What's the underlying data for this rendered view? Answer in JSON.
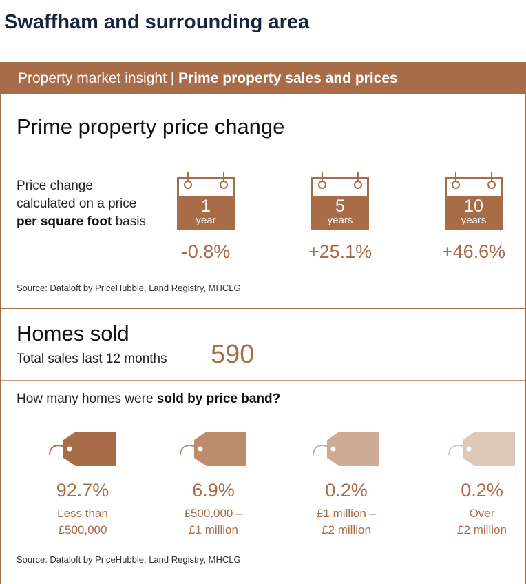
{
  "page_title": "Swaffham and surrounding area",
  "banner": {
    "prefix": "Property market insight | ",
    "bold": "Prime property sales and prices"
  },
  "price_change": {
    "title": "Prime property price change",
    "desc": {
      "t1": "Price change calculated on a price ",
      "b1": "per square foot",
      "t2": " basis"
    },
    "periods": [
      {
        "num": "1",
        "unit": "year",
        "value": "-0.8%"
      },
      {
        "num": "5",
        "unit": "years",
        "value": "+25.1%"
      },
      {
        "num": "10",
        "unit": "years",
        "value": "+46.6%"
      }
    ],
    "source": "Source: Dataloft by PriceHubble, Land Registry, MHCLG"
  },
  "homes_sold": {
    "title": "Homes sold",
    "subtitle": "Total sales last 12 months",
    "value": "590"
  },
  "price_bands": {
    "question_prefix": "How many homes were ",
    "question_bold": "sold by price band?",
    "bands": [
      {
        "value": "92.7%",
        "line1": "Less than",
        "line2": "£500,000",
        "color": "#a96c48"
      },
      {
        "value": "6.9%",
        "line1": "£500,000 –",
        "line2": "£1 million",
        "color": "#bd8c6d"
      },
      {
        "value": "0.2%",
        "line1": "£1 million –",
        "line2": "£2 million",
        "color": "#ceab95"
      },
      {
        "value": "0.2%",
        "line1": "Over",
        "line2": "£2 million",
        "color": "#dfc8b8"
      }
    ],
    "source": "Source: Dataloft by PriceHubble, Land Registry, MHCLG"
  },
  "icons": [
    "calendar-icon",
    "price-tag-icon"
  ]
}
